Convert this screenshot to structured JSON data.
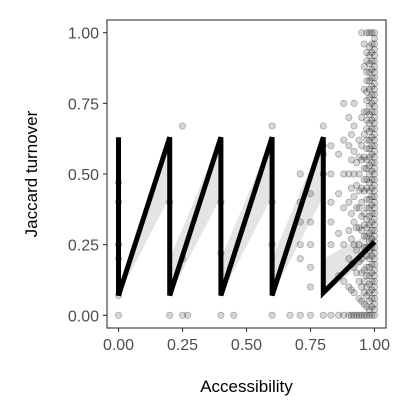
{
  "chart_data": {
    "type": "scatter",
    "title": "",
    "xlabel": "Accessibility",
    "ylabel": "Jaccard turnover",
    "xlim": [
      -0.045,
      1.045
    ],
    "ylim": [
      -0.045,
      1.045
    ],
    "x_ticks": [
      0.0,
      0.25,
      0.5,
      0.75,
      1.0
    ],
    "x_tick_labels": [
      "0.00",
      "0.25",
      "0.50",
      "0.75",
      "1.00"
    ],
    "y_ticks": [
      0.0,
      0.25,
      0.5,
      0.75,
      1.0
    ],
    "y_tick_labels": [
      "0.00",
      "0.25",
      "0.50",
      "0.75",
      "1.00"
    ],
    "grid": false,
    "legend": "none",
    "colors": {
      "points": "#000000",
      "line": "#000000",
      "band": "#d9d9d9",
      "panel_border": "#333333",
      "tick_text": "#4d4d4d"
    },
    "fit_line": {
      "x": [
        0.0,
        0.0,
        0.2,
        0.2,
        0.4,
        0.4,
        0.6,
        0.6,
        0.8,
        0.8,
        1.0
      ],
      "y": [
        0.63,
        0.07,
        0.63,
        0.07,
        0.63,
        0.07,
        0.63,
        0.07,
        0.63,
        0.08,
        0.26
      ]
    },
    "confidence_band": {
      "x": [
        0.0,
        0.2,
        0.2,
        0.4,
        0.4,
        0.6,
        0.6,
        0.8,
        0.8,
        1.0
      ],
      "lower": [
        0.07,
        0.42,
        0.07,
        0.42,
        0.07,
        0.42,
        0.07,
        0.42,
        0.07,
        0.22
      ],
      "upper": [
        0.07,
        0.63,
        0.2,
        0.63,
        0.2,
        0.63,
        0.2,
        0.63,
        0.2,
        0.3
      ]
    },
    "points": [
      [
        0.0,
        0.0
      ],
      [
        0.0,
        0.07
      ],
      [
        0.0,
        0.2
      ],
      [
        0.0,
        0.25
      ],
      [
        0.0,
        0.4
      ],
      [
        0.0,
        0.47
      ],
      [
        0.2,
        0.0
      ],
      [
        0.2,
        0.4
      ],
      [
        0.25,
        0.0
      ],
      [
        0.25,
        0.2
      ],
      [
        0.25,
        0.67
      ],
      [
        0.27,
        0.0
      ],
      [
        0.4,
        0.0
      ],
      [
        0.4,
        0.22
      ],
      [
        0.4,
        0.4
      ],
      [
        0.45,
        0.0
      ],
      [
        0.6,
        0.0
      ],
      [
        0.6,
        0.25
      ],
      [
        0.6,
        0.4
      ],
      [
        0.6,
        0.67
      ],
      [
        0.67,
        0.0
      ],
      [
        0.71,
        0.0
      ],
      [
        0.71,
        0.2
      ],
      [
        0.71,
        0.25
      ],
      [
        0.71,
        0.33
      ],
      [
        0.71,
        0.4
      ],
      [
        0.71,
        0.5
      ],
      [
        0.75,
        0.0
      ],
      [
        0.75,
        0.1
      ],
      [
        0.75,
        0.17
      ],
      [
        0.75,
        0.25
      ],
      [
        0.75,
        0.33
      ],
      [
        0.75,
        0.43
      ],
      [
        0.8,
        0.0
      ],
      [
        0.8,
        0.5
      ],
      [
        0.8,
        0.57
      ],
      [
        0.8,
        0.6
      ],
      [
        0.8,
        0.67
      ],
      [
        0.83,
        0.0
      ],
      [
        0.83,
        0.25
      ],
      [
        0.83,
        0.33
      ],
      [
        0.83,
        0.4
      ],
      [
        0.83,
        0.5
      ],
      [
        0.83,
        0.6
      ],
      [
        0.86,
        0.0
      ],
      [
        0.86,
        0.14
      ],
      [
        0.86,
        0.29
      ],
      [
        0.86,
        0.43
      ],
      [
        0.86,
        0.57
      ],
      [
        0.88,
        0.0
      ],
      [
        0.88,
        0.12
      ],
      [
        0.88,
        0.25
      ],
      [
        0.88,
        0.38
      ],
      [
        0.88,
        0.5
      ],
      [
        0.88,
        0.62
      ],
      [
        0.88,
        0.75
      ],
      [
        0.9,
        0.0
      ],
      [
        0.9,
        0.1
      ],
      [
        0.9,
        0.2
      ],
      [
        0.9,
        0.3
      ],
      [
        0.9,
        0.4
      ],
      [
        0.9,
        0.5
      ],
      [
        0.9,
        0.6
      ],
      [
        0.9,
        0.7
      ],
      [
        0.91,
        0.0
      ],
      [
        0.91,
        0.09
      ],
      [
        0.91,
        0.18
      ],
      [
        0.91,
        0.27
      ],
      [
        0.91,
        0.36
      ],
      [
        0.91,
        0.45
      ],
      [
        0.91,
        0.55
      ],
      [
        0.91,
        0.64
      ],
      [
        0.92,
        0.0
      ],
      [
        0.92,
        0.08
      ],
      [
        0.92,
        0.17
      ],
      [
        0.92,
        0.25
      ],
      [
        0.92,
        0.33
      ],
      [
        0.92,
        0.42
      ],
      [
        0.92,
        0.5
      ],
      [
        0.92,
        0.58
      ],
      [
        0.92,
        0.67
      ],
      [
        0.92,
        0.75
      ],
      [
        0.93,
        0.0
      ],
      [
        0.93,
        0.15
      ],
      [
        0.93,
        0.23
      ],
      [
        0.93,
        0.31
      ],
      [
        0.93,
        0.38
      ],
      [
        0.93,
        0.46
      ],
      [
        0.93,
        0.54
      ],
      [
        0.94,
        0.0
      ],
      [
        0.94,
        0.06
      ],
      [
        0.94,
        0.12
      ],
      [
        0.94,
        0.19
      ],
      [
        0.94,
        0.25
      ],
      [
        0.94,
        0.31
      ],
      [
        0.94,
        0.38
      ],
      [
        0.94,
        0.44
      ],
      [
        0.94,
        0.5
      ],
      [
        0.94,
        0.56
      ],
      [
        0.94,
        0.62
      ],
      [
        0.95,
        0.0
      ],
      [
        0.95,
        0.05
      ],
      [
        0.95,
        0.1
      ],
      [
        0.95,
        0.15
      ],
      [
        0.95,
        0.2
      ],
      [
        0.95,
        0.3
      ],
      [
        0.95,
        0.35
      ],
      [
        0.95,
        0.4
      ],
      [
        0.95,
        0.45
      ],
      [
        0.95,
        0.55
      ],
      [
        0.95,
        0.6
      ],
      [
        0.95,
        0.7
      ],
      [
        0.95,
        1.0
      ],
      [
        0.96,
        0.0
      ],
      [
        0.96,
        0.04
      ],
      [
        0.96,
        0.08
      ],
      [
        0.96,
        0.12
      ],
      [
        0.96,
        0.16
      ],
      [
        0.96,
        0.24
      ],
      [
        0.96,
        0.28
      ],
      [
        0.96,
        0.32
      ],
      [
        0.96,
        0.36
      ],
      [
        0.96,
        0.44
      ],
      [
        0.96,
        0.48
      ],
      [
        0.96,
        0.52
      ],
      [
        0.96,
        0.56
      ],
      [
        0.96,
        0.64
      ],
      [
        0.96,
        0.72
      ],
      [
        0.96,
        0.8
      ],
      [
        0.96,
        0.88
      ],
      [
        0.96,
        0.96
      ],
      [
        0.97,
        0.0
      ],
      [
        0.97,
        0.03
      ],
      [
        0.97,
        0.07
      ],
      [
        0.97,
        0.1
      ],
      [
        0.97,
        0.14
      ],
      [
        0.97,
        0.17
      ],
      [
        0.97,
        0.21
      ],
      [
        0.97,
        0.24
      ],
      [
        0.97,
        0.28
      ],
      [
        0.97,
        0.31
      ],
      [
        0.97,
        0.34
      ],
      [
        0.97,
        0.38
      ],
      [
        0.97,
        0.41
      ],
      [
        0.97,
        0.45
      ],
      [
        0.97,
        0.48
      ],
      [
        0.97,
        0.52
      ],
      [
        0.97,
        0.55
      ],
      [
        0.97,
        0.59
      ],
      [
        0.97,
        0.62
      ],
      [
        0.97,
        0.66
      ],
      [
        0.97,
        0.69
      ],
      [
        0.97,
        0.72
      ],
      [
        0.97,
        0.76
      ],
      [
        0.97,
        0.79
      ],
      [
        0.97,
        0.83
      ],
      [
        0.97,
        0.86
      ],
      [
        0.97,
        0.9
      ],
      [
        0.97,
        0.93
      ],
      [
        0.97,
        1.0
      ],
      [
        0.98,
        0.0
      ],
      [
        0.98,
        0.02
      ],
      [
        0.98,
        0.05
      ],
      [
        0.98,
        0.08
      ],
      [
        0.98,
        0.11
      ],
      [
        0.98,
        0.14
      ],
      [
        0.98,
        0.17
      ],
      [
        0.98,
        0.2
      ],
      [
        0.98,
        0.23
      ],
      [
        0.98,
        0.26
      ],
      [
        0.98,
        0.29
      ],
      [
        0.98,
        0.32
      ],
      [
        0.98,
        0.35
      ],
      [
        0.98,
        0.38
      ],
      [
        0.98,
        0.41
      ],
      [
        0.98,
        0.44
      ],
      [
        0.98,
        0.47
      ],
      [
        0.98,
        0.5
      ],
      [
        0.98,
        0.53
      ],
      [
        0.98,
        0.56
      ],
      [
        0.98,
        0.59
      ],
      [
        0.98,
        0.62
      ],
      [
        0.98,
        0.65
      ],
      [
        0.98,
        0.68
      ],
      [
        0.98,
        0.71
      ],
      [
        0.98,
        0.74
      ],
      [
        0.98,
        0.77
      ],
      [
        0.98,
        0.8
      ],
      [
        0.98,
        0.83
      ],
      [
        0.98,
        0.86
      ],
      [
        0.98,
        0.89
      ],
      [
        0.98,
        0.92
      ],
      [
        0.98,
        0.95
      ],
      [
        0.98,
        1.0
      ],
      [
        0.99,
        0.0
      ],
      [
        0.99,
        0.03
      ],
      [
        0.99,
        0.06
      ],
      [
        0.99,
        0.09
      ],
      [
        0.99,
        0.12
      ],
      [
        0.99,
        0.15
      ],
      [
        0.99,
        0.18
      ],
      [
        0.99,
        0.21
      ],
      [
        0.99,
        0.24
      ],
      [
        0.99,
        0.27
      ],
      [
        0.99,
        0.3
      ],
      [
        0.99,
        0.33
      ],
      [
        0.99,
        0.36
      ],
      [
        0.99,
        0.39
      ],
      [
        0.99,
        0.42
      ],
      [
        0.99,
        0.45
      ],
      [
        0.99,
        0.48
      ],
      [
        0.99,
        0.51
      ],
      [
        0.99,
        0.54
      ],
      [
        0.99,
        0.57
      ],
      [
        0.99,
        0.6
      ],
      [
        0.99,
        0.63
      ],
      [
        0.99,
        0.66
      ],
      [
        0.99,
        0.69
      ],
      [
        0.99,
        0.72
      ],
      [
        0.99,
        0.75
      ],
      [
        0.99,
        0.78
      ],
      [
        0.99,
        0.81
      ],
      [
        0.99,
        0.84
      ],
      [
        0.99,
        0.87
      ],
      [
        0.99,
        0.9
      ],
      [
        0.99,
        0.93
      ],
      [
        0.99,
        0.96
      ],
      [
        0.99,
        1.0
      ],
      [
        1.0,
        0.0
      ],
      [
        1.0,
        0.02
      ],
      [
        1.0,
        0.04
      ],
      [
        1.0,
        0.06
      ],
      [
        1.0,
        0.08
      ],
      [
        1.0,
        0.1
      ],
      [
        1.0,
        0.12
      ],
      [
        1.0,
        0.14
      ],
      [
        1.0,
        0.16
      ],
      [
        1.0,
        0.18
      ],
      [
        1.0,
        0.2
      ],
      [
        1.0,
        0.22
      ],
      [
        1.0,
        0.24
      ],
      [
        1.0,
        0.26
      ],
      [
        1.0,
        0.28
      ],
      [
        1.0,
        0.3
      ],
      [
        1.0,
        0.32
      ],
      [
        1.0,
        0.34
      ],
      [
        1.0,
        0.36
      ],
      [
        1.0,
        0.38
      ],
      [
        1.0,
        0.4
      ],
      [
        1.0,
        0.42
      ],
      [
        1.0,
        0.44
      ],
      [
        1.0,
        0.46
      ],
      [
        1.0,
        0.48
      ],
      [
        1.0,
        0.5
      ],
      [
        1.0,
        0.52
      ],
      [
        1.0,
        0.54
      ],
      [
        1.0,
        0.56
      ],
      [
        1.0,
        0.58
      ],
      [
        1.0,
        0.6
      ],
      [
        1.0,
        0.62
      ],
      [
        1.0,
        0.64
      ],
      [
        1.0,
        0.66
      ],
      [
        1.0,
        0.68
      ],
      [
        1.0,
        0.7
      ],
      [
        1.0,
        0.72
      ],
      [
        1.0,
        0.74
      ],
      [
        1.0,
        0.76
      ],
      [
        1.0,
        0.78
      ],
      [
        1.0,
        0.8
      ],
      [
        1.0,
        0.82
      ],
      [
        1.0,
        0.84
      ],
      [
        1.0,
        0.86
      ],
      [
        1.0,
        0.88
      ],
      [
        1.0,
        0.9
      ],
      [
        1.0,
        0.92
      ],
      [
        1.0,
        0.94
      ],
      [
        1.0,
        0.96
      ],
      [
        1.0,
        0.98
      ],
      [
        1.0,
        1.0
      ]
    ]
  }
}
